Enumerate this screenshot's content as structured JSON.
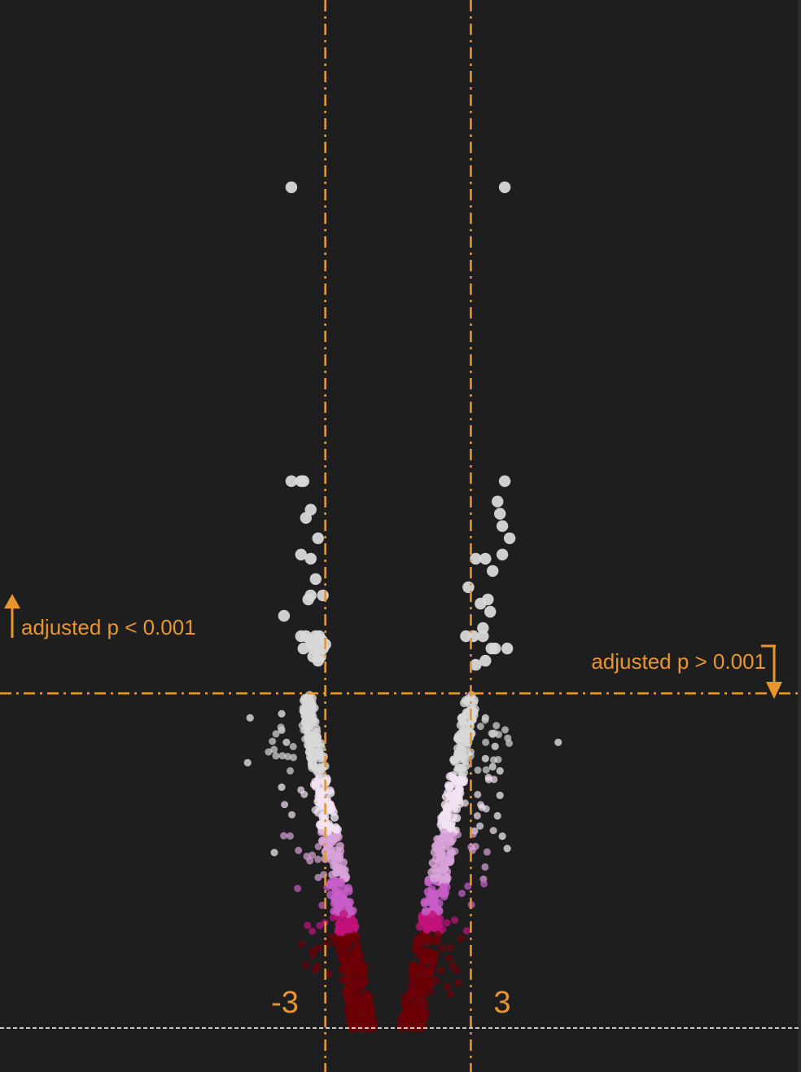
{
  "chart_data": {
    "type": "scatter",
    "title": "",
    "xlabel": "",
    "ylabel": "",
    "xlim": [
      -8.8,
      8.8
    ],
    "ylim": [
      0,
      22
    ],
    "x_unit_note": "",
    "threshold_lines": {
      "vertical_x": [
        -3,
        3
      ],
      "horizontal_y": 8.2,
      "baseline_y": 0
    },
    "labels": {
      "left_threshold": "-3",
      "right_threshold": "3",
      "above_label": "adjusted p < 0.001",
      "below_label": "adjusted p > 0.001"
    },
    "colors": {
      "background": "#1e1e1e",
      "threshold": "#e8952e",
      "baseline": "#ffffff",
      "strong": "#d8d8d8",
      "pale": "#f3e4f3",
      "lilac": "#d9a4d9",
      "orchid": "#c85ec8",
      "magenta": "#c2137a",
      "darkred": "#6d0008"
    },
    "significant_points": [
      {
        "x": -4.4,
        "y": 20.6
      },
      {
        "x": 4.4,
        "y": 20.6
      },
      {
        "x": -4.4,
        "y": 13.4
      },
      {
        "x": -4.0,
        "y": 13.4
      },
      {
        "x": -3.9,
        "y": 13.4
      },
      {
        "x": 4.4,
        "y": 13.4
      },
      {
        "x": 4.1,
        "y": 12.9
      },
      {
        "x": -3.6,
        "y": 12.7
      },
      {
        "x": 4.2,
        "y": 12.6
      },
      {
        "x": -3.8,
        "y": 12.5
      },
      {
        "x": 4.3,
        "y": 12.3
      },
      {
        "x": -3.3,
        "y": 12.0
      },
      {
        "x": 4.6,
        "y": 12.0
      },
      {
        "x": -4.0,
        "y": 11.6
      },
      {
        "x": -3.6,
        "y": 11.5
      },
      {
        "x": 3.6,
        "y": 11.5
      },
      {
        "x": 3.2,
        "y": 11.5
      },
      {
        "x": 4.3,
        "y": 11.6
      },
      {
        "x": 3.9,
        "y": 11.2
      },
      {
        "x": -3.4,
        "y": 11.0
      },
      {
        "x": 2.9,
        "y": 10.8
      },
      {
        "x": -3.6,
        "y": 10.6
      },
      {
        "x": -3.1,
        "y": 10.6
      },
      {
        "x": -3.7,
        "y": 10.5
      },
      {
        "x": 3.7,
        "y": 10.5
      },
      {
        "x": 3.4,
        "y": 10.4
      },
      {
        "x": -4.7,
        "y": 10.1
      },
      {
        "x": 3.8,
        "y": 10.2
      },
      {
        "x": 3.5,
        "y": 9.8
      },
      {
        "x": -4.0,
        "y": 9.6
      },
      {
        "x": -3.8,
        "y": 9.6
      },
      {
        "x": -3.6,
        "y": 9.5
      },
      {
        "x": -3.4,
        "y": 9.6
      },
      {
        "x": -3.25,
        "y": 9.6
      },
      {
        "x": -3.15,
        "y": 9.5
      },
      {
        "x": -3.5,
        "y": 9.3
      },
      {
        "x": -3.3,
        "y": 9.3
      },
      {
        "x": -3.1,
        "y": 9.3
      },
      {
        "x": 2.8,
        "y": 9.6
      },
      {
        "x": 3.1,
        "y": 9.6
      },
      {
        "x": 3.5,
        "y": 9.6
      },
      {
        "x": 4.0,
        "y": 9.3
      },
      {
        "x": 4.5,
        "y": 9.3
      },
      {
        "x": -3.0,
        "y": 9.4
      },
      {
        "x": -3.55,
        "y": 9.4
      },
      {
        "x": -3.9,
        "y": 9.3
      },
      {
        "x": 3.85,
        "y": 9.3
      },
      {
        "x": 3.6,
        "y": 9.0
      },
      {
        "x": -3.3,
        "y": 9.0
      },
      {
        "x": 3.2,
        "y": 8.9
      },
      {
        "x": -3.5,
        "y": 9.1
      },
      {
        "x": -3.2,
        "y": 9.1
      }
    ],
    "outlier_points": [
      {
        "x": -6.1,
        "y": 7.6
      },
      {
        "x": -4.8,
        "y": 7.7
      },
      {
        "x": -4.8,
        "y": 7.3
      },
      {
        "x": -4.6,
        "y": 7.0
      },
      {
        "x": -6.2,
        "y": 6.5
      },
      {
        "x": -4.8,
        "y": 5.9
      },
      {
        "x": -5.1,
        "y": 4.3
      },
      {
        "x": 6.6,
        "y": 7.0
      },
      {
        "x": 3.6,
        "y": 7.6
      },
      {
        "x": 3.9,
        "y": 7.2
      },
      {
        "x": 4.0,
        "y": 6.9
      },
      {
        "x": 3.6,
        "y": 6.6
      },
      {
        "x": 3.9,
        "y": 6.4
      },
      {
        "x": 4.2,
        "y": 6.3
      },
      {
        "x": 4.2,
        "y": 5.7
      },
      {
        "x": 4.1,
        "y": 5.2
      },
      {
        "x": 4.3,
        "y": 4.7
      },
      {
        "x": 4.5,
        "y": 4.4
      }
    ],
    "band_points_note": "",
    "band": {
      "left_edge": [
        -3.75,
        8.2
      ],
      "left_bottom": [
        -1.4,
        0.0
      ],
      "right_edge": [
        3.0,
        8.2
      ],
      "right_bottom": [
        0.5,
        0.0
      ],
      "count": 900
    }
  }
}
